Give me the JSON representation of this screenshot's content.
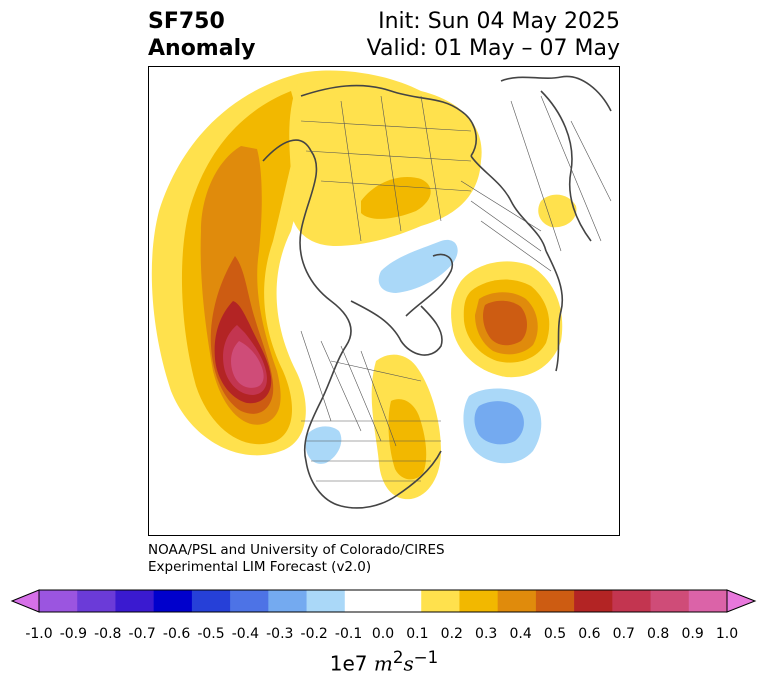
{
  "title": {
    "variable": "SF750",
    "kind": "Anomaly",
    "init": "Init: Sun 04 May 2025",
    "valid": "Valid: 01 May – 07 May"
  },
  "credit": {
    "line1": "NOAA/PSL and University of Colorado/CIRES",
    "line2": "Experimental LIM Forecast (v2.0)"
  },
  "colorbar": {
    "ticks": [
      "-1.0",
      "-0.9",
      "-0.8",
      "-0.7",
      "-0.6",
      "-0.5",
      "-0.4",
      "-0.3",
      "-0.2",
      "-0.1",
      "0.0",
      "0.1",
      "0.2",
      "0.3",
      "0.4",
      "0.5",
      "0.6",
      "0.7",
      "0.8",
      "0.9",
      "1.0"
    ],
    "colors": [
      "#9b55e0",
      "#6b3bd8",
      "#3a1ad0",
      "#0000cc",
      "#2640d8",
      "#4d73e6",
      "#74aaf0",
      "#aad8f8",
      "#ffffff",
      "#ffffff",
      "#ffe14d",
      "#f2b800",
      "#e08b0c",
      "#cd5c12",
      "#b32424",
      "#c33550",
      "#cf4c78",
      "#db63a8"
    ],
    "under_color": "#d670e8",
    "over_color": "#e878dc",
    "units_prefix": "1e7 ",
    "units_symbol": "m",
    "units_sup1": "2",
    "units_s": "s",
    "units_sup2": "−1"
  }
}
